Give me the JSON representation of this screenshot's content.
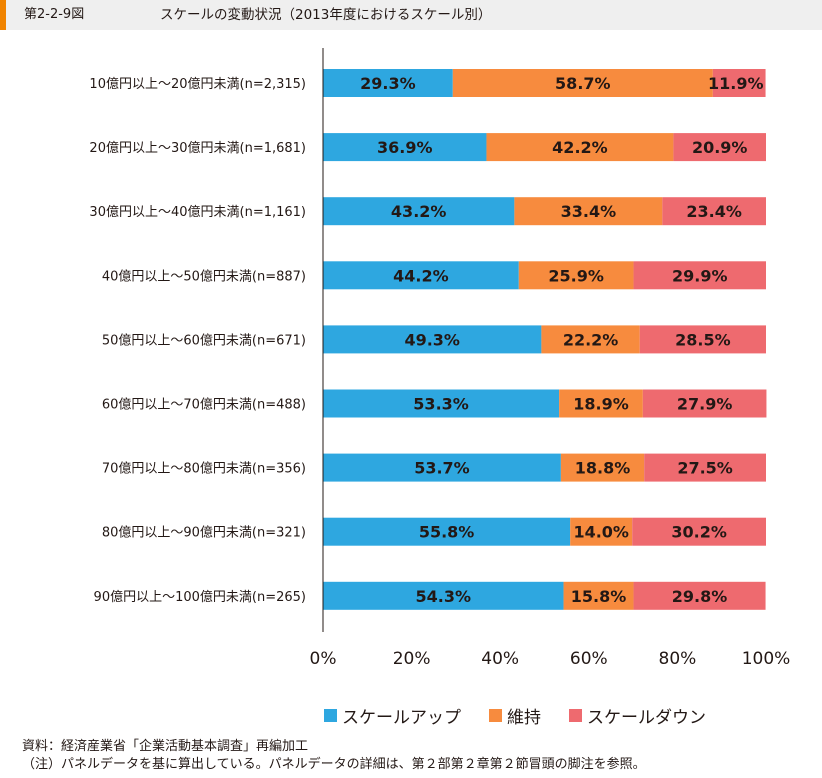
{
  "header": {
    "figure_number": "第2-2-9図",
    "title": "スケールの変動状況（2013年度におけるスケール別）"
  },
  "colors": {
    "header_bg": "#efefef",
    "header_accent": "#f08300",
    "scale_up": "#2ea7e0",
    "maintain": "#f78b3e",
    "scale_down": "#ee6a6f"
  },
  "chart_data": {
    "type": "bar",
    "orientation": "horizontal",
    "stacked": true,
    "categories": [
      "10億円以上～20億円未満(n=2,315)",
      "20億円以上～30億円未満(n=1,681)",
      "30億円以上～40億円未満(n=1,161)",
      "40億円以上～50億円未満(n=887)",
      "50億円以上～60億円未満(n=671)",
      "60億円以上～70億円未満(n=488)",
      "70億円以上～80億円未満(n=356)",
      "80億円以上～90億円未満(n=321)",
      "90億円以上～100億円未満(n=265)"
    ],
    "series": [
      {
        "name": "スケールアップ",
        "values": [
          29.3,
          36.9,
          43.2,
          44.2,
          49.3,
          53.3,
          53.7,
          55.8,
          54.3
        ]
      },
      {
        "name": "維持",
        "values": [
          58.7,
          42.2,
          33.4,
          25.9,
          22.2,
          18.9,
          18.8,
          14.0,
          15.8
        ]
      },
      {
        "name": "スケールダウン",
        "values": [
          11.9,
          20.9,
          23.4,
          29.9,
          28.5,
          27.9,
          27.5,
          30.2,
          29.8
        ]
      }
    ],
    "xlim": [
      0,
      100
    ],
    "xticks": [
      "0%",
      "20%",
      "40%",
      "60%",
      "80%",
      "100%"
    ],
    "legend_position": "bottom",
    "title": "",
    "xlabel": "",
    "ylabel": ""
  },
  "notes": {
    "source": "資料：経済産業省「企業活動基本調査」再編加工",
    "note": "（注）パネルデータを基に算出している。パネルデータの詳細は、第２部第２章第２節冒頭の脚注を参照。"
  }
}
